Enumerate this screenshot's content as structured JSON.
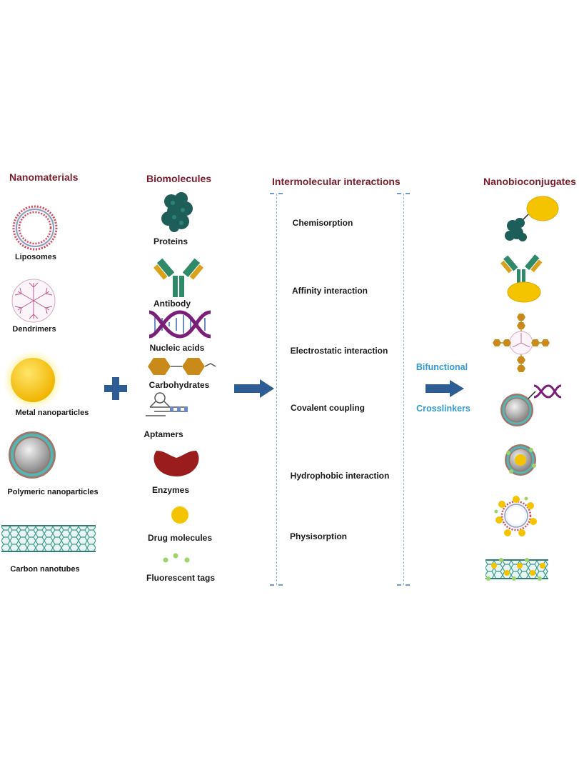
{
  "headers": {
    "nanomaterials": "Nanomaterials",
    "biomolecules": "Biomolecules",
    "interactions": "Intermolecular interactions",
    "nanobioconjugates": "Nanobioconjugates"
  },
  "nanomaterials": [
    {
      "label": "Liposomes",
      "icon": "liposome-icon"
    },
    {
      "label": "Dendrimers",
      "icon": "dendrimer-icon"
    },
    {
      "label": "Metal nanoparticles",
      "icon": "metal-nanoparticle-icon"
    },
    {
      "label": "Polymeric nanoparticles",
      "icon": "polymeric-nanoparticle-icon"
    },
    {
      "label": "Carbon nanotubes",
      "icon": "carbon-nanotube-icon"
    }
  ],
  "biomolecules": [
    {
      "label": "Proteins",
      "icon": "protein-icon"
    },
    {
      "label": "Antibody",
      "icon": "antibody-icon"
    },
    {
      "label": "Nucleic acids",
      "icon": "dna-icon"
    },
    {
      "label": "Carbohydrates",
      "icon": "carbohydrate-icon"
    },
    {
      "label": "Aptamers",
      "icon": "aptamer-icon"
    },
    {
      "label": "Enzymes",
      "icon": "enzyme-icon"
    },
    {
      "label": "Drug molecules",
      "icon": "drug-molecule-icon"
    },
    {
      "label": "Fluorescent tags",
      "icon": "fluorescent-tag-icon"
    }
  ],
  "interactions": [
    "Chemisorption",
    "Affinity interaction",
    "Electrostatic interaction",
    "Covalent coupling",
    "Hydrophobic interaction",
    "Physisorption"
  ],
  "crosslinker": {
    "line1": "Bifunctional",
    "line2": "Crosslinkers"
  },
  "colors": {
    "header": "#7b1c2c",
    "arrow": "#2e5c94",
    "plus": "#2e5c94",
    "crosslinker_text": "#2f9ad0",
    "protein": "#1e5e58",
    "gold": "#f5c400",
    "enzyme": "#9b1c1c",
    "carbohydrate": "#c98a1a",
    "nanotube": "#3b9a8c"
  }
}
